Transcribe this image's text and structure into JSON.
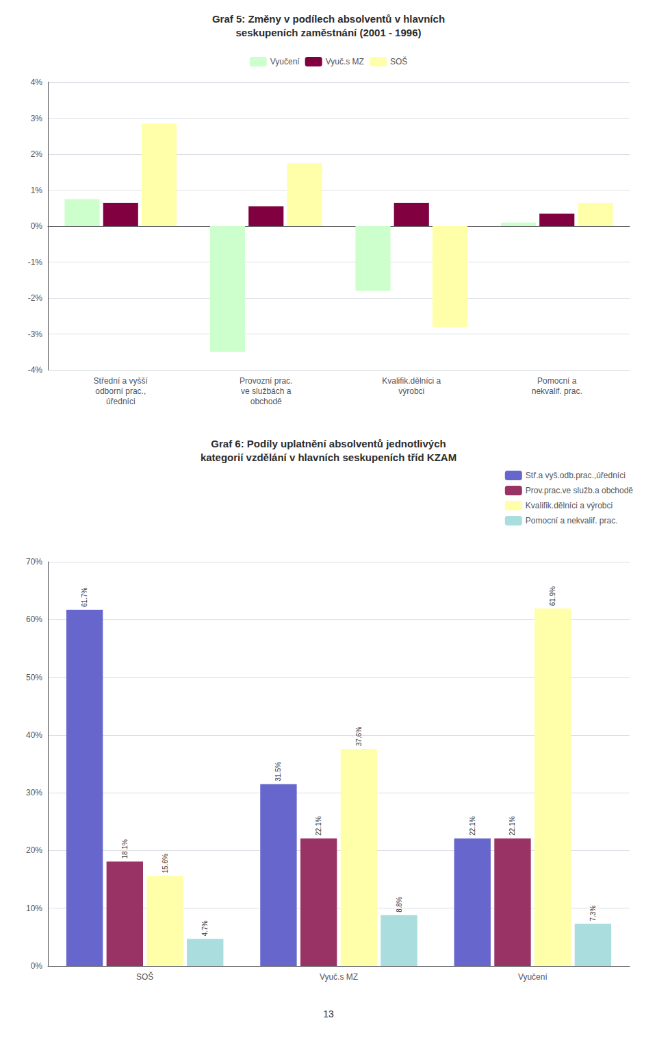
{
  "chart_data": [
    {
      "type": "bar",
      "title": "Graf 5: Změny v podílech absolventů v hlavních\nseskupeních zaměstnání (2001 - 1996)",
      "categories": [
        "Střední a vyšší\nodborní prac.,\núředníci",
        "Provozní prac.\nve službách a\nobchodě",
        "Kvalifik.dělníci a\nvýrobci",
        "Pomocní a\nnekvalif. prac."
      ],
      "series": [
        {
          "name": "Vyučení",
          "color": "#ccffcc",
          "values": [
            0.75,
            -3.5,
            -1.8,
            0.1
          ]
        },
        {
          "name": "Vyuč.s MZ",
          "color": "#800040",
          "values": [
            0.65,
            0.55,
            0.65,
            0.35
          ]
        },
        {
          "name": "SOŠ",
          "color": "#ffffaa",
          "values": [
            2.85,
            1.75,
            -2.8,
            0.65
          ]
        }
      ],
      "ylim": [
        -4,
        4
      ],
      "yticks": [
        {
          "value": -4,
          "label": "-4%"
        },
        {
          "value": -3,
          "label": "-3%"
        },
        {
          "value": -2,
          "label": "-2%"
        },
        {
          "value": -1,
          "label": "-1%"
        },
        {
          "value": 0,
          "label": "0%"
        },
        {
          "value": 1,
          "label": "1%"
        },
        {
          "value": 2,
          "label": "2%"
        },
        {
          "value": 3,
          "label": "3%"
        },
        {
          "value": 4,
          "label": "4%"
        }
      ],
      "grid": true,
      "legend": "upper center"
    },
    {
      "type": "bar",
      "title": "Graf 6: Podíly uplatnění absolventů jednotlivých\nkategorií vzdělání v hlavních seskupeních tříd KZAM",
      "categories": [
        "SOŠ",
        "Vyuč.s MZ",
        "Vyučení"
      ],
      "series": [
        {
          "name": "Stř.a vyš.odb.prac.,úředníci",
          "color": "#6666cc",
          "values": [
            61.7,
            31.5,
            22.1
          ],
          "value_labels": [
            "61.7%",
            "31.5%",
            "22.1%"
          ]
        },
        {
          "name": "Prov.prac.ve služb.a obchodě",
          "color": "#993366",
          "values": [
            18.1,
            22.1,
            22.1
          ],
          "value_labels": [
            "18.1%",
            "22.1%",
            "22.1%"
          ]
        },
        {
          "name": "Kvalifik.dělníci a výrobci",
          "color": "#ffffaa",
          "values": [
            15.6,
            37.6,
            61.9
          ],
          "value_labels": [
            "15.6%",
            "37.6%",
            "61.9%"
          ]
        },
        {
          "name": "Pomocní a nekvalif. prac.",
          "color": "#aadddd",
          "values": [
            4.7,
            8.8,
            7.3
          ],
          "value_labels": [
            "4.7%",
            "8.8%",
            "7.3%"
          ]
        }
      ],
      "ylim": [
        0,
        70
      ],
      "yticks": [
        {
          "value": 0,
          "label": "0%"
        },
        {
          "value": 10,
          "label": "10%"
        },
        {
          "value": 20,
          "label": "20%"
        },
        {
          "value": 30,
          "label": "30%"
        },
        {
          "value": 40,
          "label": "40%"
        },
        {
          "value": 50,
          "label": "50%"
        },
        {
          "value": 60,
          "label": "60%"
        },
        {
          "value": 70,
          "label": "70%"
        }
      ],
      "grid": true,
      "legend": "upper right",
      "data_labels": true
    }
  ],
  "footer": "13"
}
